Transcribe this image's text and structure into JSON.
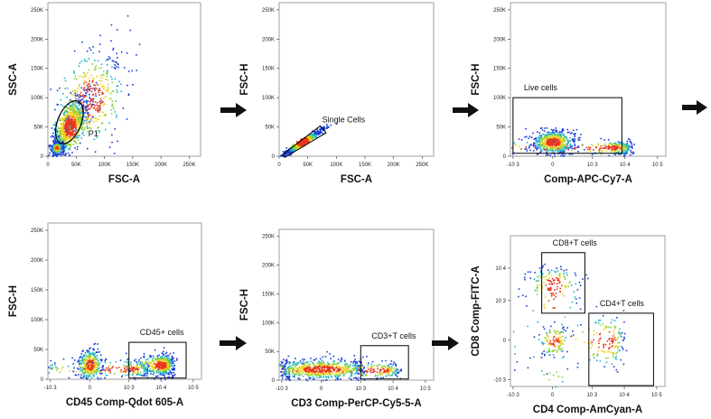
{
  "colors": {
    "low": "#1a3fd6",
    "mid": "#22b3c8",
    "high1": "#8fd23a",
    "high2": "#f0d020",
    "peak": "#e8371c",
    "gate": "#000000",
    "arrow": "#111111"
  },
  "chart_data": [
    {
      "id": "fsc-ssc",
      "type": "scatter",
      "xlabel": "FSC-A",
      "ylabel": "SSC-A",
      "xscale": "linear",
      "yscale": "linear",
      "xlim": [
        0,
        270000
      ],
      "ylim": [
        0,
        262144
      ],
      "xticks": [
        {
          "v": 0,
          "t": "0"
        },
        {
          "v": 50000,
          "t": "50K"
        },
        {
          "v": 100000,
          "t": "100K"
        },
        {
          "v": 150000,
          "t": "150K"
        },
        {
          "v": 200000,
          "t": "200K"
        },
        {
          "v": 250000,
          "t": "250K"
        }
      ],
      "yticks": [
        {
          "v": 0,
          "t": "0"
        },
        {
          "v": 50000,
          "t": "50K"
        },
        {
          "v": 100000,
          "t": "100K"
        },
        {
          "v": 150000,
          "t": "150K"
        },
        {
          "v": 200000,
          "t": "200K"
        },
        {
          "v": 250000,
          "t": "250K"
        }
      ],
      "population": [
        {
          "cx": 38000,
          "cy": 52000,
          "sx": 17000,
          "sy": 26000,
          "rho": 0.7,
          "n": 900
        },
        {
          "cx": 15000,
          "cy": 15000,
          "sx": 5000,
          "sy": 5000,
          "rho": 0.3,
          "n": 300
        },
        {
          "cx": 75000,
          "cy": 100000,
          "sx": 32000,
          "sy": 45000,
          "rho": 0.5,
          "n": 400
        }
      ],
      "gate": {
        "shape": "ellipse",
        "label": "P1",
        "cx": 38000,
        "cy": 58000,
        "rx": 40000,
        "ry": 20000,
        "angle_deg": -68
      }
    },
    {
      "id": "fsc-singlets",
      "type": "scatter",
      "xlabel": "FSC-A",
      "ylabel": "FSC-H",
      "xscale": "linear",
      "yscale": "linear",
      "xlim": [
        0,
        270000
      ],
      "ylim": [
        0,
        262144
      ],
      "xticks": [
        {
          "v": 0,
          "t": "0"
        },
        {
          "v": 50000,
          "t": "50K"
        },
        {
          "v": 100000,
          "t": "100K"
        },
        {
          "v": 150000,
          "t": "150K"
        },
        {
          "v": 200000,
          "t": "200K"
        },
        {
          "v": 250000,
          "t": "250K"
        }
      ],
      "yticks": [
        {
          "v": 0,
          "t": "0"
        },
        {
          "v": 50000,
          "t": "50K"
        },
        {
          "v": 100000,
          "t": "100K"
        },
        {
          "v": 150000,
          "t": "150K"
        },
        {
          "v": 200000,
          "t": "200K"
        },
        {
          "v": 250000,
          "t": "250K"
        }
      ],
      "population": [
        {
          "cx": 40000,
          "cy": 25000,
          "sx": 18000,
          "sy": 11500,
          "rho": 0.97,
          "n": 700
        }
      ],
      "gate": {
        "shape": "polygon",
        "label": "Single Cells",
        "points": [
          [
            5000,
            2000
          ],
          [
            72000,
            52000
          ],
          [
            82000,
            40000
          ],
          [
            10000,
            -2000
          ]
        ]
      }
    },
    {
      "id": "viability",
      "type": "scatter",
      "xlabel": "Comp-APC-Cy7-A",
      "ylabel": "FSC-H",
      "xscale": "biex",
      "yscale": "linear",
      "xlim": [
        -1200,
        180000
      ],
      "ylim": [
        0,
        262144
      ],
      "xticks": [
        {
          "v": -1000,
          "t": "-10 3"
        },
        {
          "v": 0,
          "t": "0"
        },
        {
          "v": 1000,
          "t": "10 3"
        },
        {
          "v": 10000,
          "t": "10 4"
        },
        {
          "v": 100000,
          "t": "10 5"
        }
      ],
      "yticks": [
        {
          "v": 0,
          "t": "0"
        },
        {
          "v": 50000,
          "t": "50K"
        },
        {
          "v": 100000,
          "t": "100K"
        },
        {
          "v": 150000,
          "t": "150K"
        },
        {
          "v": 200000,
          "t": "200K"
        },
        {
          "v": 250000,
          "t": "250K"
        }
      ],
      "population": [
        {
          "cx": 0,
          "cy": 25000,
          "sx": 200,
          "sy": 10000,
          "rho": 0,
          "n": 600
        },
        {
          "cx": 3000,
          "cy": 15000,
          "sx": 6000,
          "sy": 6000,
          "rho": 0,
          "n": 350
        }
      ],
      "gate": {
        "shape": "rect",
        "label": "Live cells",
        "x0": -1000,
        "x1": 8000,
        "y0": 5000,
        "y1": 100000
      }
    },
    {
      "id": "cd45",
      "type": "scatter",
      "xlabel": "CD45 Comp-Qdot 605-A",
      "ylabel": "FSC-H",
      "xscale": "biex",
      "yscale": "linear",
      "xlim": [
        -1200,
        180000
      ],
      "ylim": [
        0,
        262144
      ],
      "xticks": [
        {
          "v": -1000,
          "t": "-10 3"
        },
        {
          "v": 0,
          "t": "0"
        },
        {
          "v": 1000,
          "t": "10 3"
        },
        {
          "v": 10000,
          "t": "10 4"
        },
        {
          "v": 100000,
          "t": "10 5"
        }
      ],
      "yticks": [
        {
          "v": 0,
          "t": "0"
        },
        {
          "v": 50000,
          "t": "50K"
        },
        {
          "v": 100000,
          "t": "100K"
        },
        {
          "v": 150000,
          "t": "150K"
        },
        {
          "v": 200000,
          "t": "200K"
        },
        {
          "v": 250000,
          "t": "250K"
        }
      ],
      "population": [
        {
          "cx": 10000,
          "cy": 25000,
          "sx": 6500,
          "sy": 9000,
          "rho": 0,
          "n": 550
        },
        {
          "cx": 0,
          "cy": 25000,
          "sx": 120,
          "sy": 13000,
          "rho": 0,
          "n": 350
        },
        {
          "cx": 900,
          "cy": 18000,
          "sx": 1500,
          "sy": 7000,
          "rho": 0,
          "n": 200
        }
      ],
      "gate": {
        "shape": "rect",
        "label": "CD45+ cells",
        "x0": 1000,
        "x1": 60000,
        "y0": 2000,
        "y1": 62000
      }
    },
    {
      "id": "cd3",
      "type": "scatter",
      "xlabel": "CD3 Comp-PerCP-Cy5-5-A",
      "ylabel": "FSC-H",
      "xscale": "biex",
      "yscale": "linear",
      "xlim": [
        -1200,
        180000
      ],
      "ylim": [
        0,
        262144
      ],
      "xticks": [
        {
          "v": -1000,
          "t": "-10 3"
        },
        {
          "v": 0,
          "t": "0"
        },
        {
          "v": 1000,
          "t": "10 3"
        },
        {
          "v": 10000,
          "t": "10 4"
        },
        {
          "v": 100000,
          "t": "10 5"
        }
      ],
      "yticks": [
        {
          "v": 0,
          "t": "0"
        },
        {
          "v": 50000,
          "t": "50K"
        },
        {
          "v": 100000,
          "t": "100K"
        },
        {
          "v": 150000,
          "t": "150K"
        },
        {
          "v": 200000,
          "t": "200K"
        },
        {
          "v": 250000,
          "t": "250K"
        }
      ],
      "population": [
        {
          "cx": 0,
          "cy": 20000,
          "sx": 500,
          "sy": 9000,
          "rho": 0,
          "n": 700
        },
        {
          "cx": 3000,
          "cy": 18000,
          "sx": 6000,
          "sy": 7000,
          "rho": 0,
          "n": 250
        }
      ],
      "gate": {
        "shape": "rect",
        "label": "CD3+T cells",
        "x0": 1000,
        "x1": 30000,
        "y0": 2000,
        "y1": 60000
      }
    },
    {
      "id": "cd4-cd8",
      "type": "scatter",
      "xlabel": "CD4 Comp-AmCyan-A",
      "ylabel": "CD8 Comp-FITC-A",
      "xscale": "biex",
      "yscale": "biex",
      "xlim": [
        -1200,
        180000
      ],
      "ylim": [
        -1600,
        100000
      ],
      "xticks": [
        {
          "v": -1000,
          "t": "-10 3"
        },
        {
          "v": 0,
          "t": "0"
        },
        {
          "v": 1000,
          "t": "10 3"
        },
        {
          "v": 10000,
          "t": "10 4"
        },
        {
          "v": 100000,
          "t": "10 5"
        }
      ],
      "yticks": [
        {
          "v": -1000,
          "t": "-10 3"
        },
        {
          "v": 0,
          "t": "0"
        },
        {
          "v": 1000,
          "t": "10 3"
        },
        {
          "v": 10000,
          "t": "10 4"
        }
      ],
      "population": [
        {
          "cx": 0,
          "cy": 3000,
          "sx": 250,
          "sy": 3500,
          "rho": 0,
          "n": 200
        },
        {
          "cx": 20,
          "cy": 0,
          "sx": 150,
          "sy": 150,
          "rho": 0,
          "n": 110
        },
        {
          "cx": 3000,
          "cy": 0,
          "sx": 3000,
          "sy": 250,
          "rho": 0,
          "n": 180
        }
      ],
      "gate_list": [
        {
          "shape": "rect",
          "label": "CD8+T cells",
          "x0": -200,
          "x1": 600,
          "y0": 500,
          "y1": 30000
        },
        {
          "shape": "rect",
          "label": "CD4+T cells",
          "x0": 800,
          "x1": 80000,
          "y0": -1500,
          "y1": 500
        }
      ]
    }
  ]
}
